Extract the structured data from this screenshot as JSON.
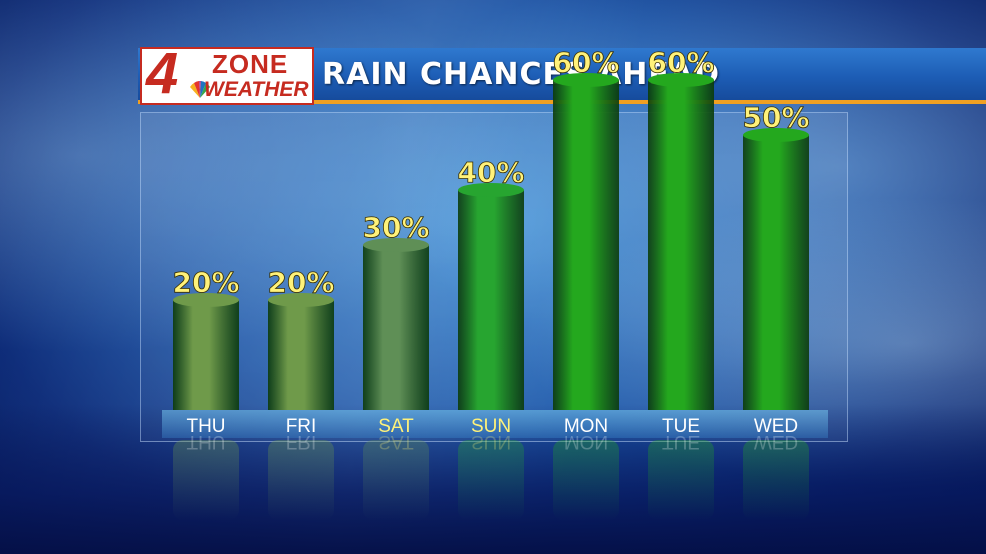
{
  "logo": {
    "number": "4",
    "zone": "ZONE",
    "weather": "WEATHER",
    "brand_color": "#c62b20"
  },
  "header": {
    "title": "RAIN CHANCES AHEAD",
    "accent_color": "#f0a022"
  },
  "chart_data": {
    "type": "bar",
    "title": "RAIN CHANCES AHEAD",
    "categories": [
      "THU",
      "FRI",
      "SAT",
      "SUN",
      "MON",
      "TUE",
      "WED"
    ],
    "values": [
      20,
      20,
      30,
      40,
      60,
      60,
      50
    ],
    "labels": [
      "20%",
      "20%",
      "30%",
      "40%",
      "60%",
      "60%",
      "50%"
    ],
    "unit": "%",
    "ylim": [
      0,
      100
    ],
    "grid": false,
    "label_colors": [
      "#ffffff",
      "#ffffff",
      "#fff27a",
      "#fff27a",
      "#ffffff",
      "#ffffff",
      "#ffffff"
    ],
    "bar_colors": [
      "#6f9a4a",
      "#6f9a4a",
      "#5f8f56",
      "#27a530",
      "#24a81e",
      "#24a81e",
      "#24a81e"
    ]
  }
}
